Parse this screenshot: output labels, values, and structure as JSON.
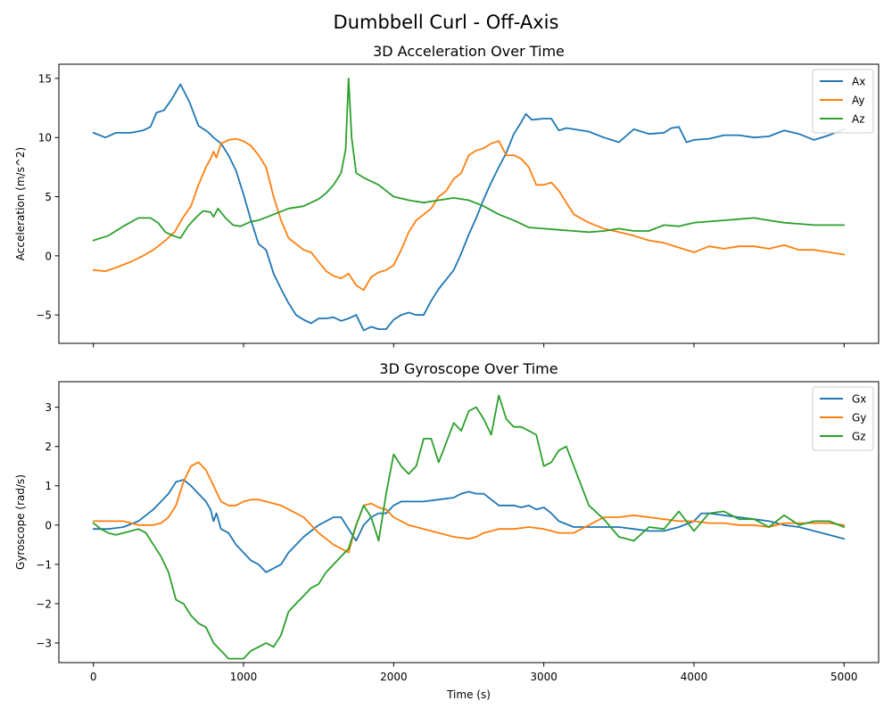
{
  "figure": {
    "suptitle": "Dumbbell Curl - Off-Axis"
  },
  "colors": {
    "x": "#1f77b4",
    "y": "#ff7f0e",
    "z": "#2ca02c"
  },
  "chart_data": [
    {
      "type": "line",
      "title": "3D Acceleration Over Time",
      "xlabel": "",
      "ylabel": "Acceleration (m/s^2)",
      "xlim": [
        -230,
        5230
      ],
      "ylim": [
        -7.4,
        16.2
      ],
      "xticks": [
        0,
        1000,
        2000,
        3000,
        4000,
        5000
      ],
      "xtick_labels_visible": false,
      "yticks": [
        -5,
        0,
        5,
        10,
        15
      ],
      "legend": "top-right",
      "grid": false,
      "series": [
        {
          "name": "Ax",
          "color": "#1f77b4",
          "x": [
            0,
            80,
            150,
            250,
            330,
            380,
            420,
            470,
            520,
            580,
            640,
            700,
            760,
            800,
            850,
            900,
            950,
            1000,
            1050,
            1100,
            1150,
            1200,
            1250,
            1300,
            1350,
            1400,
            1450,
            1500,
            1550,
            1600,
            1650,
            1700,
            1750,
            1800,
            1850,
            1900,
            1950,
            2000,
            2050,
            2100,
            2150,
            2200,
            2250,
            2300,
            2350,
            2400,
            2450,
            2500,
            2550,
            2600,
            2650,
            2700,
            2750,
            2800,
            2850,
            2880,
            2920,
            3000,
            3050,
            3100,
            3150,
            3200,
            3300,
            3400,
            3500,
            3600,
            3700,
            3800,
            3850,
            3900,
            3950,
            4000,
            4100,
            4200,
            4300,
            4400,
            4500,
            4600,
            4700,
            4800,
            4900,
            5000
          ],
          "y": [
            10.4,
            10.0,
            10.4,
            10.4,
            10.6,
            10.9,
            12.1,
            12.3,
            13.2,
            14.5,
            13.0,
            11.0,
            10.5,
            10.0,
            9.5,
            8.5,
            7.2,
            5.2,
            3.0,
            1.0,
            0.5,
            -1.5,
            -2.8,
            -4.0,
            -5.0,
            -5.4,
            -5.7,
            -5.3,
            -5.3,
            -5.2,
            -5.5,
            -5.3,
            -5.0,
            -6.3,
            -6.0,
            -6.2,
            -6.2,
            -5.4,
            -5.0,
            -4.8,
            -5.0,
            -5.0,
            -3.8,
            -2.8,
            -2.0,
            -1.2,
            0.2,
            1.8,
            3.2,
            4.8,
            6.2,
            7.5,
            8.7,
            10.3,
            11.3,
            12.0,
            11.5,
            11.6,
            11.6,
            10.6,
            10.8,
            10.7,
            10.5,
            10.0,
            9.6,
            10.7,
            10.3,
            10.4,
            10.8,
            10.9,
            9.6,
            9.8,
            9.9,
            10.2,
            10.2,
            10.0,
            10.1,
            10.6,
            10.3,
            9.8,
            10.2,
            10.7
          ]
        },
        {
          "name": "Ay",
          "color": "#ff7f0e",
          "x": [
            0,
            80,
            150,
            250,
            330,
            400,
            480,
            540,
            600,
            650,
            700,
            750,
            780,
            800,
            820,
            850,
            900,
            950,
            1000,
            1050,
            1100,
            1150,
            1200,
            1250,
            1300,
            1350,
            1400,
            1450,
            1500,
            1550,
            1600,
            1650,
            1700,
            1750,
            1800,
            1850,
            1900,
            1950,
            2000,
            2050,
            2100,
            2150,
            2200,
            2250,
            2300,
            2350,
            2400,
            2450,
            2500,
            2550,
            2600,
            2650,
            2700,
            2750,
            2800,
            2850,
            2900,
            2950,
            3000,
            3050,
            3100,
            3150,
            3200,
            3300,
            3400,
            3500,
            3600,
            3700,
            3800,
            3900,
            4000,
            4100,
            4200,
            4300,
            4400,
            4500,
            4600,
            4700,
            4800,
            4900,
            5000
          ],
          "y": [
            -1.2,
            -1.3,
            -1.0,
            -0.5,
            0.0,
            0.5,
            1.3,
            2.0,
            3.3,
            4.2,
            6.0,
            7.5,
            8.2,
            8.8,
            8.3,
            9.5,
            9.8,
            9.9,
            9.7,
            9.3,
            8.5,
            7.5,
            5.0,
            3.0,
            1.5,
            1.0,
            0.5,
            0.3,
            -0.5,
            -1.3,
            -1.7,
            -1.9,
            -1.5,
            -2.5,
            -2.9,
            -1.8,
            -1.4,
            -1.2,
            -0.8,
            0.5,
            2.0,
            3.0,
            3.5,
            4.0,
            5.0,
            5.5,
            6.5,
            7.0,
            8.5,
            8.9,
            9.1,
            9.5,
            9.7,
            8.5,
            8.5,
            8.2,
            7.5,
            6.0,
            6.0,
            6.2,
            5.5,
            4.5,
            3.5,
            2.8,
            2.3,
            2.0,
            1.7,
            1.3,
            1.1,
            0.7,
            0.3,
            0.8,
            0.6,
            0.8,
            0.8,
            0.6,
            0.9,
            0.5,
            0.5,
            0.3,
            0.1
          ]
        },
        {
          "name": "Az",
          "color": "#2ca02c",
          "x": [
            0,
            100,
            200,
            300,
            380,
            430,
            480,
            530,
            580,
            630,
            680,
            730,
            780,
            800,
            830,
            880,
            930,
            980,
            1050,
            1100,
            1200,
            1300,
            1400,
            1500,
            1550,
            1600,
            1650,
            1680,
            1700,
            1720,
            1750,
            1800,
            1900,
            2000,
            2100,
            2200,
            2300,
            2400,
            2500,
            2600,
            2700,
            2800,
            2900,
            3000,
            3100,
            3200,
            3300,
            3400,
            3500,
            3600,
            3700,
            3800,
            3900,
            4000,
            4100,
            4200,
            4300,
            4400,
            4500,
            4600,
            4700,
            4800,
            4900,
            5000
          ],
          "y": [
            1.3,
            1.7,
            2.5,
            3.2,
            3.2,
            2.8,
            2.0,
            1.7,
            1.5,
            2.5,
            3.2,
            3.8,
            3.7,
            3.3,
            4.0,
            3.2,
            2.6,
            2.5,
            2.9,
            3.0,
            3.5,
            4.0,
            4.2,
            4.8,
            5.3,
            6.0,
            7.0,
            9.0,
            15.0,
            10.0,
            7.0,
            6.6,
            6.0,
            5.0,
            4.7,
            4.5,
            4.7,
            4.9,
            4.7,
            4.2,
            3.5,
            3.0,
            2.4,
            2.3,
            2.2,
            2.1,
            2.0,
            2.1,
            2.3,
            2.1,
            2.1,
            2.6,
            2.5,
            2.8,
            2.9,
            3.0,
            3.1,
            3.2,
            3.0,
            2.8,
            2.7,
            2.6,
            2.6,
            2.6
          ]
        }
      ]
    },
    {
      "type": "line",
      "title": "3D Gyroscope Over Time",
      "xlabel": "Time (s)",
      "ylabel": "Gyroscope (rad/s)",
      "xlim": [
        -230,
        5230
      ],
      "ylim": [
        -3.5,
        3.65
      ],
      "xticks": [
        0,
        1000,
        2000,
        3000,
        4000,
        5000
      ],
      "xtick_labels_visible": true,
      "yticks": [
        -3,
        -2,
        -1,
        0,
        1,
        2,
        3
      ],
      "legend": "top-right",
      "grid": false,
      "series": [
        {
          "name": "Gx",
          "color": "#1f77b4",
          "x": [
            0,
            100,
            200,
            300,
            400,
            450,
            500,
            550,
            600,
            650,
            700,
            750,
            780,
            800,
            820,
            850,
            900,
            950,
            1000,
            1050,
            1100,
            1150,
            1200,
            1250,
            1300,
            1400,
            1500,
            1600,
            1650,
            1700,
            1750,
            1800,
            1850,
            1900,
            1950,
            2000,
            2050,
            2100,
            2200,
            2300,
            2400,
            2450,
            2500,
            2550,
            2600,
            2700,
            2800,
            2850,
            2900,
            2950,
            3000,
            3050,
            3100,
            3200,
            3300,
            3400,
            3500,
            3600,
            3700,
            3800,
            3900,
            4000,
            4050,
            4100,
            4200,
            4300,
            4400,
            4500,
            4600,
            4700,
            4800,
            4900,
            5000
          ],
          "y": [
            -0.1,
            -0.1,
            -0.05,
            0.1,
            0.4,
            0.6,
            0.8,
            1.1,
            1.15,
            1.0,
            0.8,
            0.6,
            0.4,
            0.1,
            0.3,
            -0.1,
            -0.2,
            -0.5,
            -0.7,
            -0.9,
            -1.0,
            -1.2,
            -1.1,
            -1.0,
            -0.7,
            -0.3,
            0.0,
            0.2,
            0.2,
            -0.1,
            -0.4,
            0.0,
            0.2,
            0.3,
            0.3,
            0.5,
            0.6,
            0.6,
            0.6,
            0.65,
            0.7,
            0.8,
            0.85,
            0.8,
            0.8,
            0.5,
            0.5,
            0.45,
            0.5,
            0.4,
            0.45,
            0.3,
            0.1,
            -0.05,
            -0.05,
            -0.05,
            -0.05,
            -0.1,
            -0.15,
            -0.15,
            -0.05,
            0.1,
            0.3,
            0.3,
            0.25,
            0.2,
            0.15,
            0.1,
            0.0,
            -0.05,
            -0.15,
            -0.25,
            -0.35
          ]
        },
        {
          "name": "Gy",
          "color": "#ff7f0e",
          "x": [
            0,
            100,
            200,
            300,
            400,
            450,
            500,
            550,
            600,
            650,
            700,
            750,
            800,
            850,
            900,
            950,
            1000,
            1050,
            1100,
            1150,
            1200,
            1250,
            1300,
            1400,
            1500,
            1600,
            1650,
            1700,
            1750,
            1800,
            1850,
            1900,
            1950,
            2000,
            2100,
            2200,
            2300,
            2400,
            2500,
            2550,
            2600,
            2700,
            2800,
            2900,
            3000,
            3100,
            3200,
            3300,
            3400,
            3500,
            3600,
            3700,
            3800,
            3900,
            4000,
            4100,
            4200,
            4300,
            4400,
            4500,
            4600,
            4700,
            4800,
            4900,
            5000
          ],
          "y": [
            0.1,
            0.1,
            0.1,
            0.0,
            0.0,
            0.05,
            0.2,
            0.5,
            1.1,
            1.5,
            1.6,
            1.4,
            1.0,
            0.6,
            0.5,
            0.5,
            0.6,
            0.65,
            0.65,
            0.6,
            0.55,
            0.5,
            0.4,
            0.2,
            -0.2,
            -0.5,
            -0.6,
            -0.7,
            0.0,
            0.5,
            0.55,
            0.45,
            0.4,
            0.2,
            0.0,
            -0.1,
            -0.2,
            -0.3,
            -0.35,
            -0.3,
            -0.2,
            -0.1,
            -0.1,
            -0.05,
            -0.1,
            -0.2,
            -0.2,
            0.0,
            0.2,
            0.2,
            0.25,
            0.2,
            0.15,
            0.1,
            0.1,
            0.05,
            0.05,
            0.0,
            0.0,
            -0.05,
            0.05,
            0.05,
            0.05,
            0.05,
            0.0
          ]
        },
        {
          "name": "Gz",
          "color": "#2ca02c",
          "x": [
            0,
            50,
            100,
            150,
            200,
            250,
            300,
            350,
            400,
            450,
            500,
            550,
            600,
            650,
            700,
            750,
            800,
            850,
            900,
            950,
            1000,
            1050,
            1100,
            1150,
            1200,
            1250,
            1300,
            1350,
            1400,
            1450,
            1500,
            1550,
            1600,
            1650,
            1700,
            1750,
            1800,
            1850,
            1900,
            1950,
            2000,
            2050,
            2100,
            2150,
            2200,
            2250,
            2300,
            2350,
            2400,
            2450,
            2500,
            2550,
            2600,
            2650,
            2700,
            2750,
            2800,
            2850,
            2900,
            2950,
            3000,
            3050,
            3100,
            3150,
            3200,
            3250,
            3300,
            3400,
            3500,
            3600,
            3700,
            3800,
            3900,
            4000,
            4100,
            4200,
            4300,
            4400,
            4500,
            4600,
            4700,
            4800,
            4900,
            5000
          ],
          "y": [
            0.05,
            -0.1,
            -0.2,
            -0.25,
            -0.2,
            -0.15,
            -0.1,
            -0.2,
            -0.5,
            -0.8,
            -1.2,
            -1.9,
            -2.0,
            -2.3,
            -2.5,
            -2.6,
            -3.0,
            -3.2,
            -3.4,
            -3.4,
            -3.4,
            -3.2,
            -3.1,
            -3.0,
            -3.1,
            -2.8,
            -2.2,
            -2.0,
            -1.8,
            -1.6,
            -1.5,
            -1.2,
            -1.0,
            -0.8,
            -0.6,
            0.0,
            0.5,
            0.2,
            -0.4,
            0.8,
            1.8,
            1.5,
            1.3,
            1.5,
            2.2,
            2.2,
            1.6,
            2.1,
            2.6,
            2.4,
            2.9,
            3.0,
            2.7,
            2.3,
            3.3,
            2.7,
            2.5,
            2.5,
            2.4,
            2.3,
            1.5,
            1.6,
            1.9,
            2.0,
            1.5,
            1.0,
            0.5,
            0.15,
            -0.3,
            -0.4,
            -0.05,
            -0.1,
            0.35,
            -0.15,
            0.3,
            0.35,
            0.15,
            0.15,
            -0.05,
            0.25,
            0.0,
            0.1,
            0.1,
            -0.05
          ]
        }
      ]
    }
  ]
}
